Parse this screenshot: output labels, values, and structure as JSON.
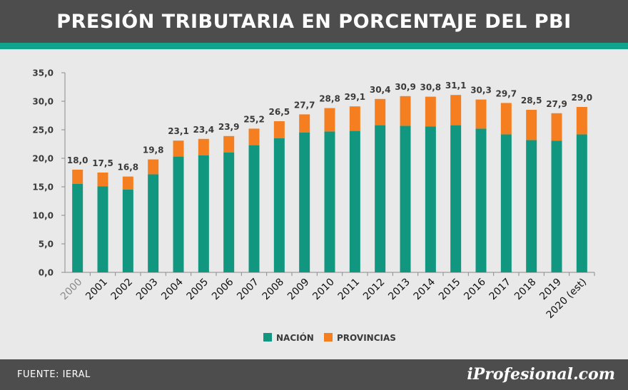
{
  "header": {
    "title": "PRESIÓN TRIBUTARIA EN PORCENTAJE DEL PBI"
  },
  "footer": {
    "source": "FUENTE: IERAL",
    "brand": "iProfesional.com"
  },
  "colors": {
    "nacion": "#11967f",
    "provincias": "#f57f20",
    "header_bg": "#4d4d4d",
    "accent": "#11a48d",
    "background": "#e9e9e9"
  },
  "chart_data": {
    "type": "bar",
    "stacked": true,
    "categories": [
      "2000",
      "2001",
      "2002",
      "2003",
      "2004",
      "2005",
      "2006",
      "2007",
      "2008",
      "2009",
      "2010",
      "2011",
      "2012",
      "2013",
      "2014",
      "2015",
      "2016",
      "2017",
      "2018",
      "2019",
      "2020 (est)"
    ],
    "series": [
      {
        "name": "NACIÓN",
        "values": [
          15.5,
          15.1,
          14.5,
          17.2,
          20.3,
          20.5,
          21.0,
          22.3,
          23.5,
          24.5,
          24.7,
          24.8,
          25.8,
          25.7,
          25.6,
          25.8,
          25.2,
          24.2,
          23.2,
          23.1,
          24.2
        ]
      },
      {
        "name": "PROVINCIAS",
        "values": [
          2.5,
          2.4,
          2.3,
          2.6,
          2.8,
          2.9,
          2.9,
          2.9,
          3.0,
          3.2,
          4.1,
          4.3,
          4.6,
          5.2,
          5.2,
          5.3,
          5.1,
          5.5,
          5.3,
          4.8,
          4.8
        ]
      }
    ],
    "totals_labels": [
      "18,0",
      "17,5",
      "16,8",
      "19,8",
      "23,1",
      "23,4",
      "23,9",
      "25,2",
      "26,5",
      "27,7",
      "28,8",
      "29,1",
      "30,4",
      "30,9",
      "30,8",
      "31,1",
      "30,3",
      "29,7",
      "28,5",
      "27,9",
      "29,0"
    ],
    "yticks": [
      "0,0",
      "5,0",
      "10,0",
      "15,0",
      "20,0",
      "25,0",
      "30,0",
      "35,0"
    ],
    "ylim": [
      0,
      35
    ],
    "legend": {
      "position": "bottom",
      "items": [
        "NACIÓN",
        "PROVINCIAS"
      ]
    },
    "grid": false
  }
}
